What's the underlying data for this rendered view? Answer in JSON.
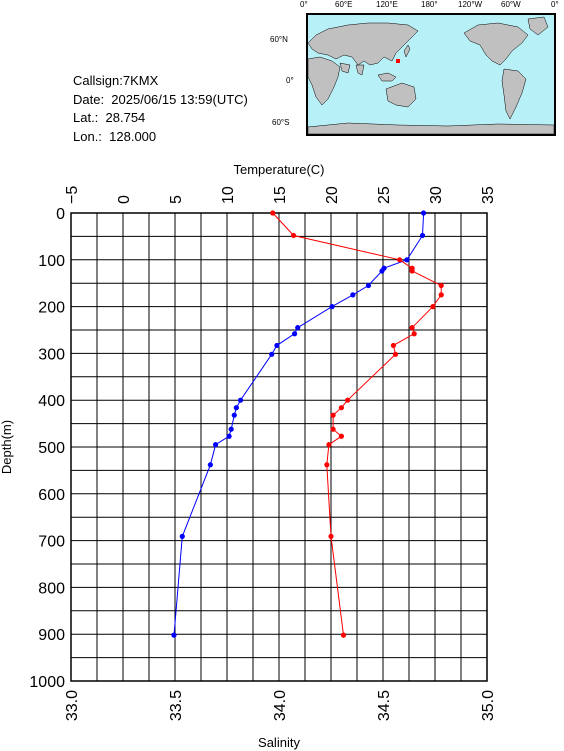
{
  "station": {
    "callsign": "Callsign:7KMX",
    "date": "Date:  2025/06/15 13:59(UTC)",
    "lat": "Lat.:  28.754",
    "lon": "Lon.:  128.000"
  },
  "map": {
    "top_labels": [
      "0°",
      "60°E",
      "120°E",
      "180°",
      "120°W",
      "60°W",
      "0°"
    ],
    "side_labels": [
      "60°N",
      "0°",
      "60°S"
    ],
    "ocean_color": "#b8f0f8",
    "land_color": "#c0c0c0",
    "marker_color": "#ff0000"
  },
  "chart_data": {
    "type": "line",
    "xlabel_top": "Temperature(C)",
    "xlabel_bottom": "Salinity",
    "ylabel": "Depth(m)",
    "temperature_ticks": [
      "−5",
      "0",
      "5",
      "10",
      "15",
      "20",
      "25",
      "30",
      "35"
    ],
    "salinity_ticks": [
      "33.0",
      "33.5",
      "34.0",
      "34.5",
      "35.0"
    ],
    "depth_ticks": [
      "0",
      "100",
      "200",
      "300",
      "400",
      "500",
      "600",
      "700",
      "800",
      "900",
      "1000"
    ],
    "xlim_temperature": [
      -5,
      35
    ],
    "xlim_salinity": [
      33.0,
      35.0
    ],
    "ylim_depth": [
      0,
      1000
    ],
    "grid": true,
    "series": [
      {
        "axis": "temperature",
        "color": "#0000ff",
        "depth": [
          0,
          48,
          100,
          118,
          124,
          155,
          175,
          200,
          245,
          258,
          283,
          302,
          400,
          416,
          432,
          462,
          477,
          495,
          538,
          691,
          902
        ],
        "values": [
          28.9,
          28.8,
          27.3,
          25.1,
          24.9,
          23.6,
          22.1,
          20.1,
          16.8,
          16.5,
          14.8,
          14.3,
          11.3,
          10.9,
          10.7,
          10.4,
          10.2,
          8.9,
          8.4,
          5.7,
          4.9
        ]
      },
      {
        "axis": "salinity",
        "color": "#ff0000",
        "depth": [
          0,
          48,
          100,
          118,
          124,
          155,
          175,
          200,
          245,
          258,
          283,
          302,
          400,
          416,
          432,
          462,
          477,
          495,
          538,
          691,
          902
        ],
        "values": [
          33.97,
          34.07,
          34.58,
          34.64,
          34.64,
          34.78,
          34.78,
          34.74,
          34.64,
          34.65,
          34.55,
          34.56,
          34.33,
          34.3,
          34.26,
          34.26,
          34.3,
          34.24,
          34.23,
          34.25,
          34.31
        ]
      }
    ]
  }
}
